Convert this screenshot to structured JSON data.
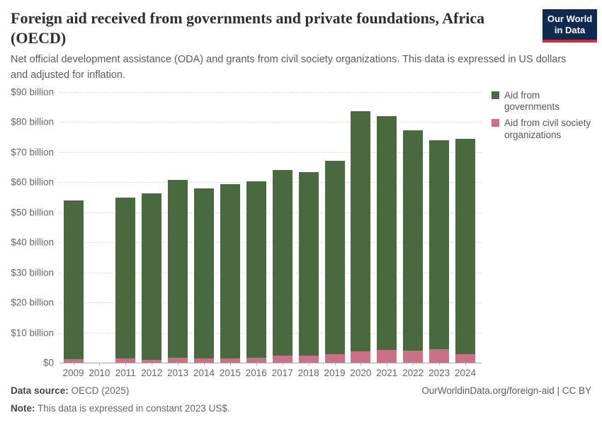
{
  "header": {
    "title": "Foreign aid received from governments and private foundations, Africa (OECD)",
    "subtitle": "Net official development assistance (ODA) and grants from civil society organizations. This data is expressed in US dollars and adjusted for inflation.",
    "logo": {
      "line1": "Our World",
      "line2": "in Data",
      "bg_color": "#0d2a50",
      "accent_color": "#d32b3a"
    }
  },
  "chart_data": {
    "type": "bar",
    "stacked": true,
    "title": "Foreign aid received from governments and private foundations, Africa (OECD)",
    "xlabel": "",
    "ylabel": "US$ billion",
    "ylim": [
      0,
      90
    ],
    "ytick_interval": 10,
    "ytick_labels": [
      "$0",
      "$10 billion",
      "$20 billion",
      "$30 billion",
      "$40 billion",
      "$50 billion",
      "$60 billion",
      "$70 billion",
      "$80 billion",
      "$90 billion"
    ],
    "grid": "dashed horizontal",
    "legend_position": "top-right",
    "categories": [
      "2009",
      "2010",
      "2011",
      "2012",
      "2013",
      "2014",
      "2015",
      "2016",
      "2017",
      "2018",
      "2019",
      "2020",
      "2021",
      "2022",
      "2023",
      "2024"
    ],
    "series": [
      {
        "name": "Aid from civil society organizations",
        "color": "#cb7087",
        "values": [
          1.2,
          null,
          1.3,
          1.0,
          1.6,
          1.3,
          1.4,
          1.6,
          2.3,
          2.4,
          2.8,
          3.8,
          4.2,
          4.0,
          4.5,
          2.8
        ]
      },
      {
        "name": "Aid from governments",
        "color": "#486a3e",
        "values": [
          52.8,
          null,
          53.7,
          55.2,
          59.3,
          56.6,
          57.9,
          58.8,
          61.8,
          61.1,
          64.4,
          79.9,
          77.8,
          73.4,
          69.4,
          71.6
        ]
      }
    ],
    "totals": [
      54.0,
      null,
      55.0,
      56.2,
      60.9,
      57.9,
      59.3,
      60.4,
      64.1,
      63.5,
      67.2,
      83.7,
      82.0,
      77.4,
      73.9,
      74.4
    ],
    "legend": [
      {
        "label": "Aid from governments",
        "color": "#486a3e"
      },
      {
        "label": "Aid from civil society organizations",
        "color": "#cb7087"
      }
    ]
  },
  "footer": {
    "datasource_label": "Data source:",
    "datasource_value": " OECD (2025)",
    "note_label": "Note:",
    "note_value": " This data is expressed in constant 2023 US$.",
    "link": "OurWorldinData.org/foreign-aid | CC BY"
  }
}
